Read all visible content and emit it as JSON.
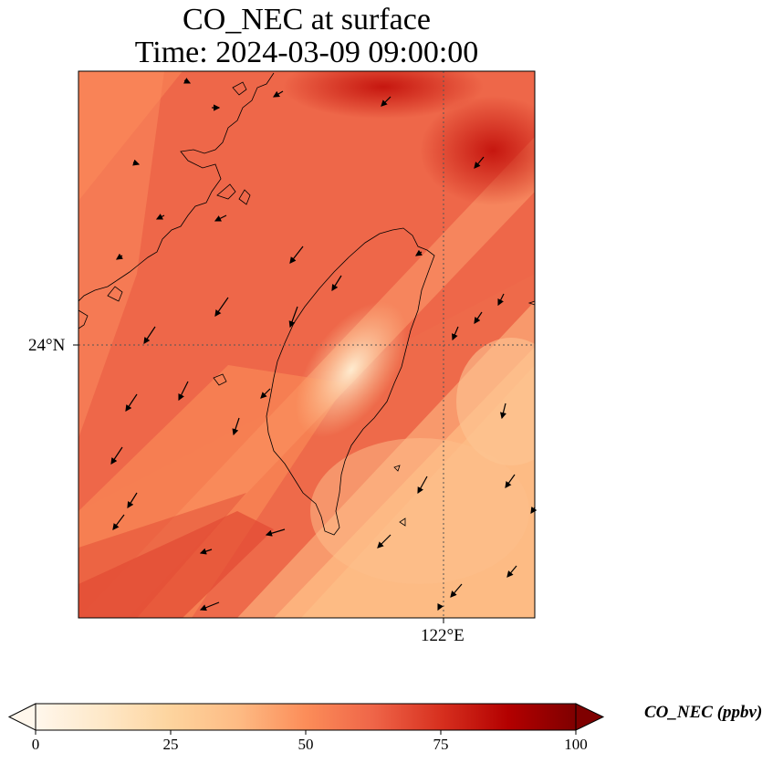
{
  "title": {
    "line1": "CO_NEC at surface",
    "line2": "Time: 2024-03-09 09:00:00"
  },
  "map": {
    "variable": "CO_NEC",
    "level": "surface",
    "region": "Taiwan",
    "lat_range": [
      21.5,
      26.5
    ],
    "lon_range": [
      118.7,
      122.85
    ],
    "gridlines": {
      "latitudes": [
        24
      ],
      "longitudes": [
        122
      ],
      "style": "dotted"
    },
    "lat_tick_label": "24°N",
    "lon_tick_label": "122°E",
    "wind_vectors": true,
    "coastlines": true
  },
  "colorbar": {
    "label": "CO_NEC (ppbv)",
    "colormap": "OrRd",
    "min": 0,
    "max": 100,
    "ticks": [
      "0",
      "25",
      "50",
      "75",
      "100"
    ],
    "extend": "both",
    "colors": [
      "#fff7ec",
      "#fee8c8",
      "#fdd49e",
      "#fdbb84",
      "#fc8d59",
      "#ef6548",
      "#d7301f",
      "#b30000",
      "#7f0000"
    ]
  }
}
